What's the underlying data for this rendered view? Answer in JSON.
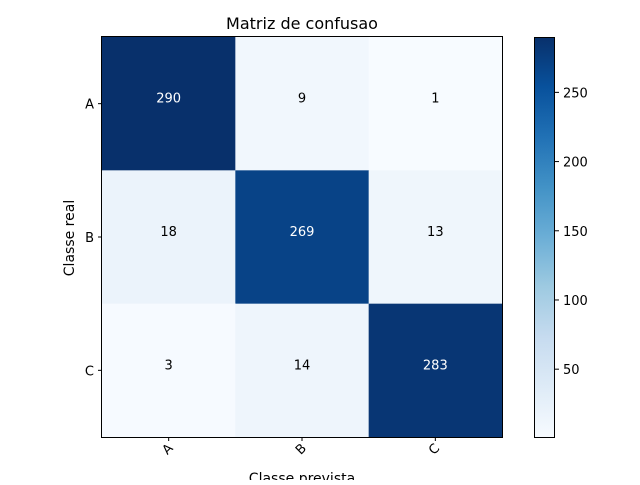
{
  "chart_data": {
    "type": "heatmap",
    "title": "Matriz de confusao",
    "xlabel": "Classe prevista",
    "ylabel": "Classe real",
    "x_categories": [
      "A",
      "B",
      "C"
    ],
    "y_categories": [
      "A",
      "B",
      "C"
    ],
    "matrix": [
      [
        290,
        9,
        1
      ],
      [
        18,
        269,
        13
      ],
      [
        3,
        14,
        283
      ]
    ],
    "colormap": "Blues",
    "color_range": [
      1,
      290
    ],
    "colorbar_ticks": [
      50,
      100,
      150,
      200,
      250
    ],
    "grid": false,
    "xtick_rotation": 45
  }
}
